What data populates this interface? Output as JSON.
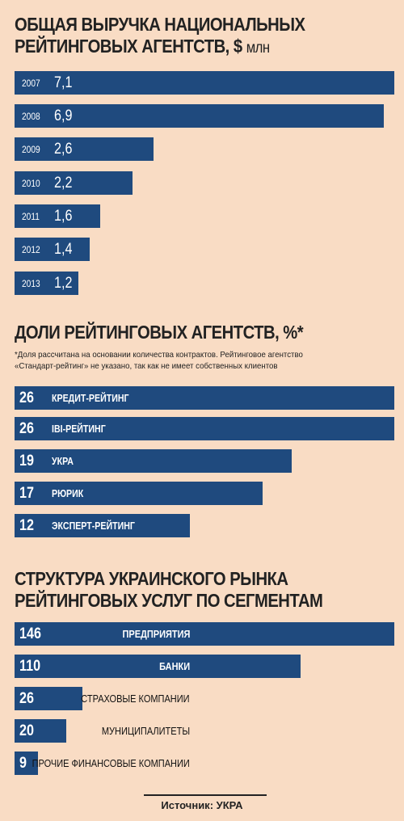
{
  "chart_data": [
    {
      "type": "bar",
      "title_main": "ОБЩАЯ ВЫРУЧКА НАЦИОНАЛЬНЫХ",
      "title_line2": "РЕЙТИНГОВЫХ АГЕНТСТВ, $",
      "title_unit": "млн",
      "categories": [
        "2007",
        "2008",
        "2009",
        "2010",
        "2011",
        "2012",
        "2013"
      ],
      "value_labels": [
        "7,1",
        "6,9",
        "2,6",
        "2,2",
        "1,6",
        "1,4",
        "1,2"
      ],
      "values": [
        7.1,
        6.9,
        2.6,
        2.2,
        1.6,
        1.4,
        1.2
      ],
      "xlim": [
        0,
        7.1
      ]
    },
    {
      "type": "bar",
      "title": "ДОЛИ РЕЙТИНГОВЫХ АГЕНТСТВ, %*",
      "note_line1": "*Доля рассчитана на основании количества контрактов. Рейтинговое агентство",
      "note_line2": "«Стандарт-рейтинг» не указано, так как не имеет собственных клиентов",
      "categories": [
        "КРЕДИТ-РЕЙТИНГ",
        "IBI-РЕЙТИНГ",
        "УКРА",
        "РЮРИК",
        "ЭКСПЕРТ-РЕЙТИНГ"
      ],
      "value_labels": [
        "26",
        "26",
        "19",
        "17",
        "12"
      ],
      "values": [
        26,
        26,
        19,
        17,
        12
      ],
      "xlim": [
        0,
        26
      ]
    },
    {
      "type": "bar",
      "title_line1": "СТРУКТУРА УКРАИНСКОГО РЫНКА",
      "title_line2": "РЕЙТИНГОВЫХ УСЛУГ ПО СЕГМЕНТАМ",
      "categories": [
        "ПРЕДПРИЯТИЯ",
        "БАНКИ",
        "СТРАХОВЫЕ КОМПАНИИ",
        "МУНИЦИПАЛИТЕТЫ",
        "ПРОЧИЕ ФИНАНСОВЫЕ КОМПАНИИ"
      ],
      "value_labels": [
        "146",
        "110",
        "26",
        "20",
        "9"
      ],
      "values": [
        146,
        110,
        26,
        20,
        9
      ],
      "xlim": [
        0,
        146
      ]
    }
  ],
  "colors": {
    "background": "#f9dcc4",
    "bar": "#1f4a7e"
  },
  "source": "Источник: УКРА"
}
